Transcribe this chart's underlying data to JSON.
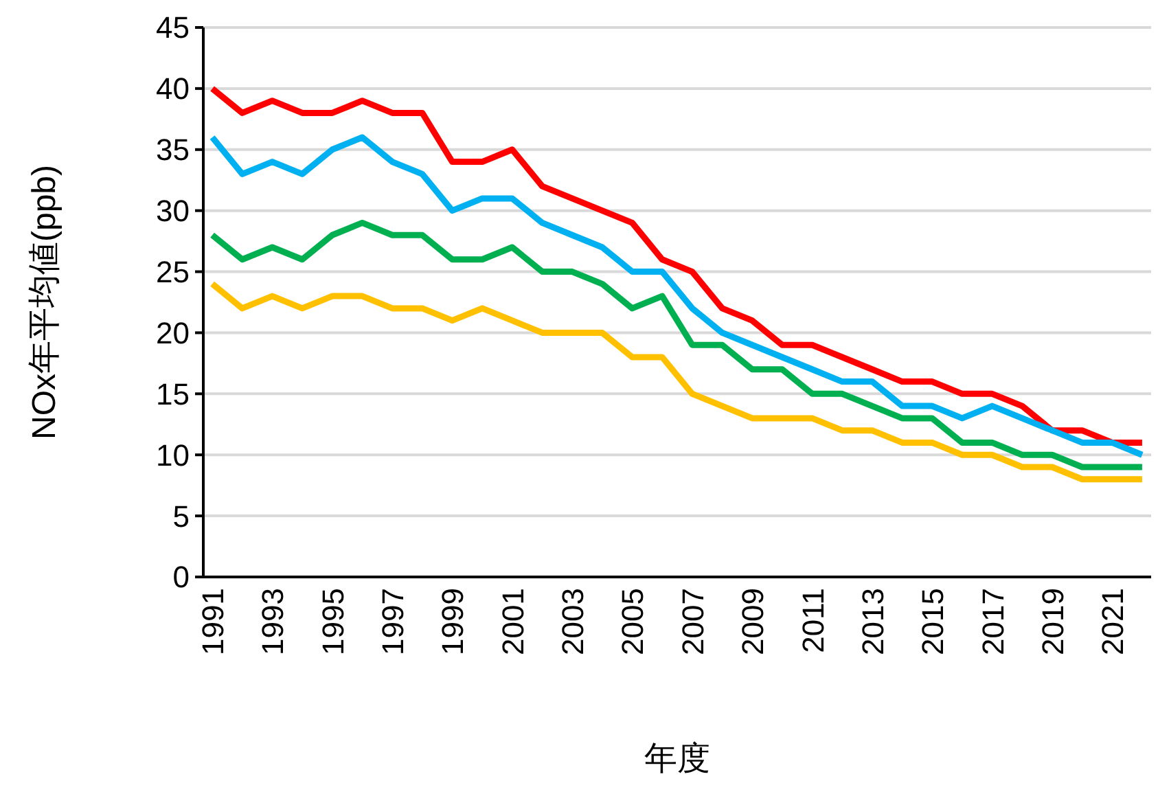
{
  "chart_data": {
    "type": "line",
    "xlabel": "年度",
    "ylabel": "NOx年平均値(ppb)",
    "categories": [
      "1991",
      null,
      "1993",
      null,
      "1995",
      null,
      "1997",
      null,
      "1999",
      null,
      "2001",
      null,
      "2003",
      null,
      "2005",
      null,
      "2007",
      null,
      "2009",
      null,
      "2011",
      null,
      "2013",
      null,
      "2015",
      null,
      "2017",
      null,
      "2019",
      null,
      "2021",
      null
    ],
    "series": [
      {
        "color": "#ff0000",
        "values": [
          40,
          38,
          39,
          38,
          38,
          39,
          38,
          38,
          34,
          34,
          35,
          32,
          31,
          30,
          29,
          26,
          25,
          22,
          21,
          19,
          19,
          18,
          17,
          16,
          16,
          15,
          15,
          14,
          12,
          12,
          11,
          11
        ]
      },
      {
        "color": "#00b0f0",
        "values": [
          36,
          33,
          34,
          33,
          35,
          36,
          34,
          33,
          30,
          31,
          31,
          29,
          28,
          27,
          25,
          25,
          22,
          20,
          19,
          18,
          17,
          16,
          16,
          14,
          14,
          13,
          14,
          13,
          12,
          11,
          11,
          10
        ]
      },
      {
        "color": "#00b050",
        "values": [
          28,
          26,
          27,
          26,
          28,
          29,
          28,
          28,
          26,
          26,
          27,
          25,
          25,
          24,
          22,
          23,
          19,
          19,
          17,
          17,
          15,
          15,
          14,
          13,
          13,
          11,
          11,
          10,
          10,
          9,
          9,
          9
        ]
      },
      {
        "color": "#ffc000",
        "values": [
          24,
          22,
          23,
          22,
          23,
          23,
          22,
          22,
          21,
          22,
          21,
          20,
          20,
          20,
          18,
          18,
          15,
          14,
          13,
          13,
          13,
          12,
          12,
          11,
          11,
          10,
          10,
          9,
          9,
          8,
          8,
          8
        ]
      }
    ],
    "ylim": [
      0,
      45
    ],
    "yticks": [
      0,
      5,
      10,
      15,
      20,
      25,
      30,
      35,
      40,
      45
    ],
    "grid": "y",
    "line_style": "solid",
    "marker": "none"
  }
}
